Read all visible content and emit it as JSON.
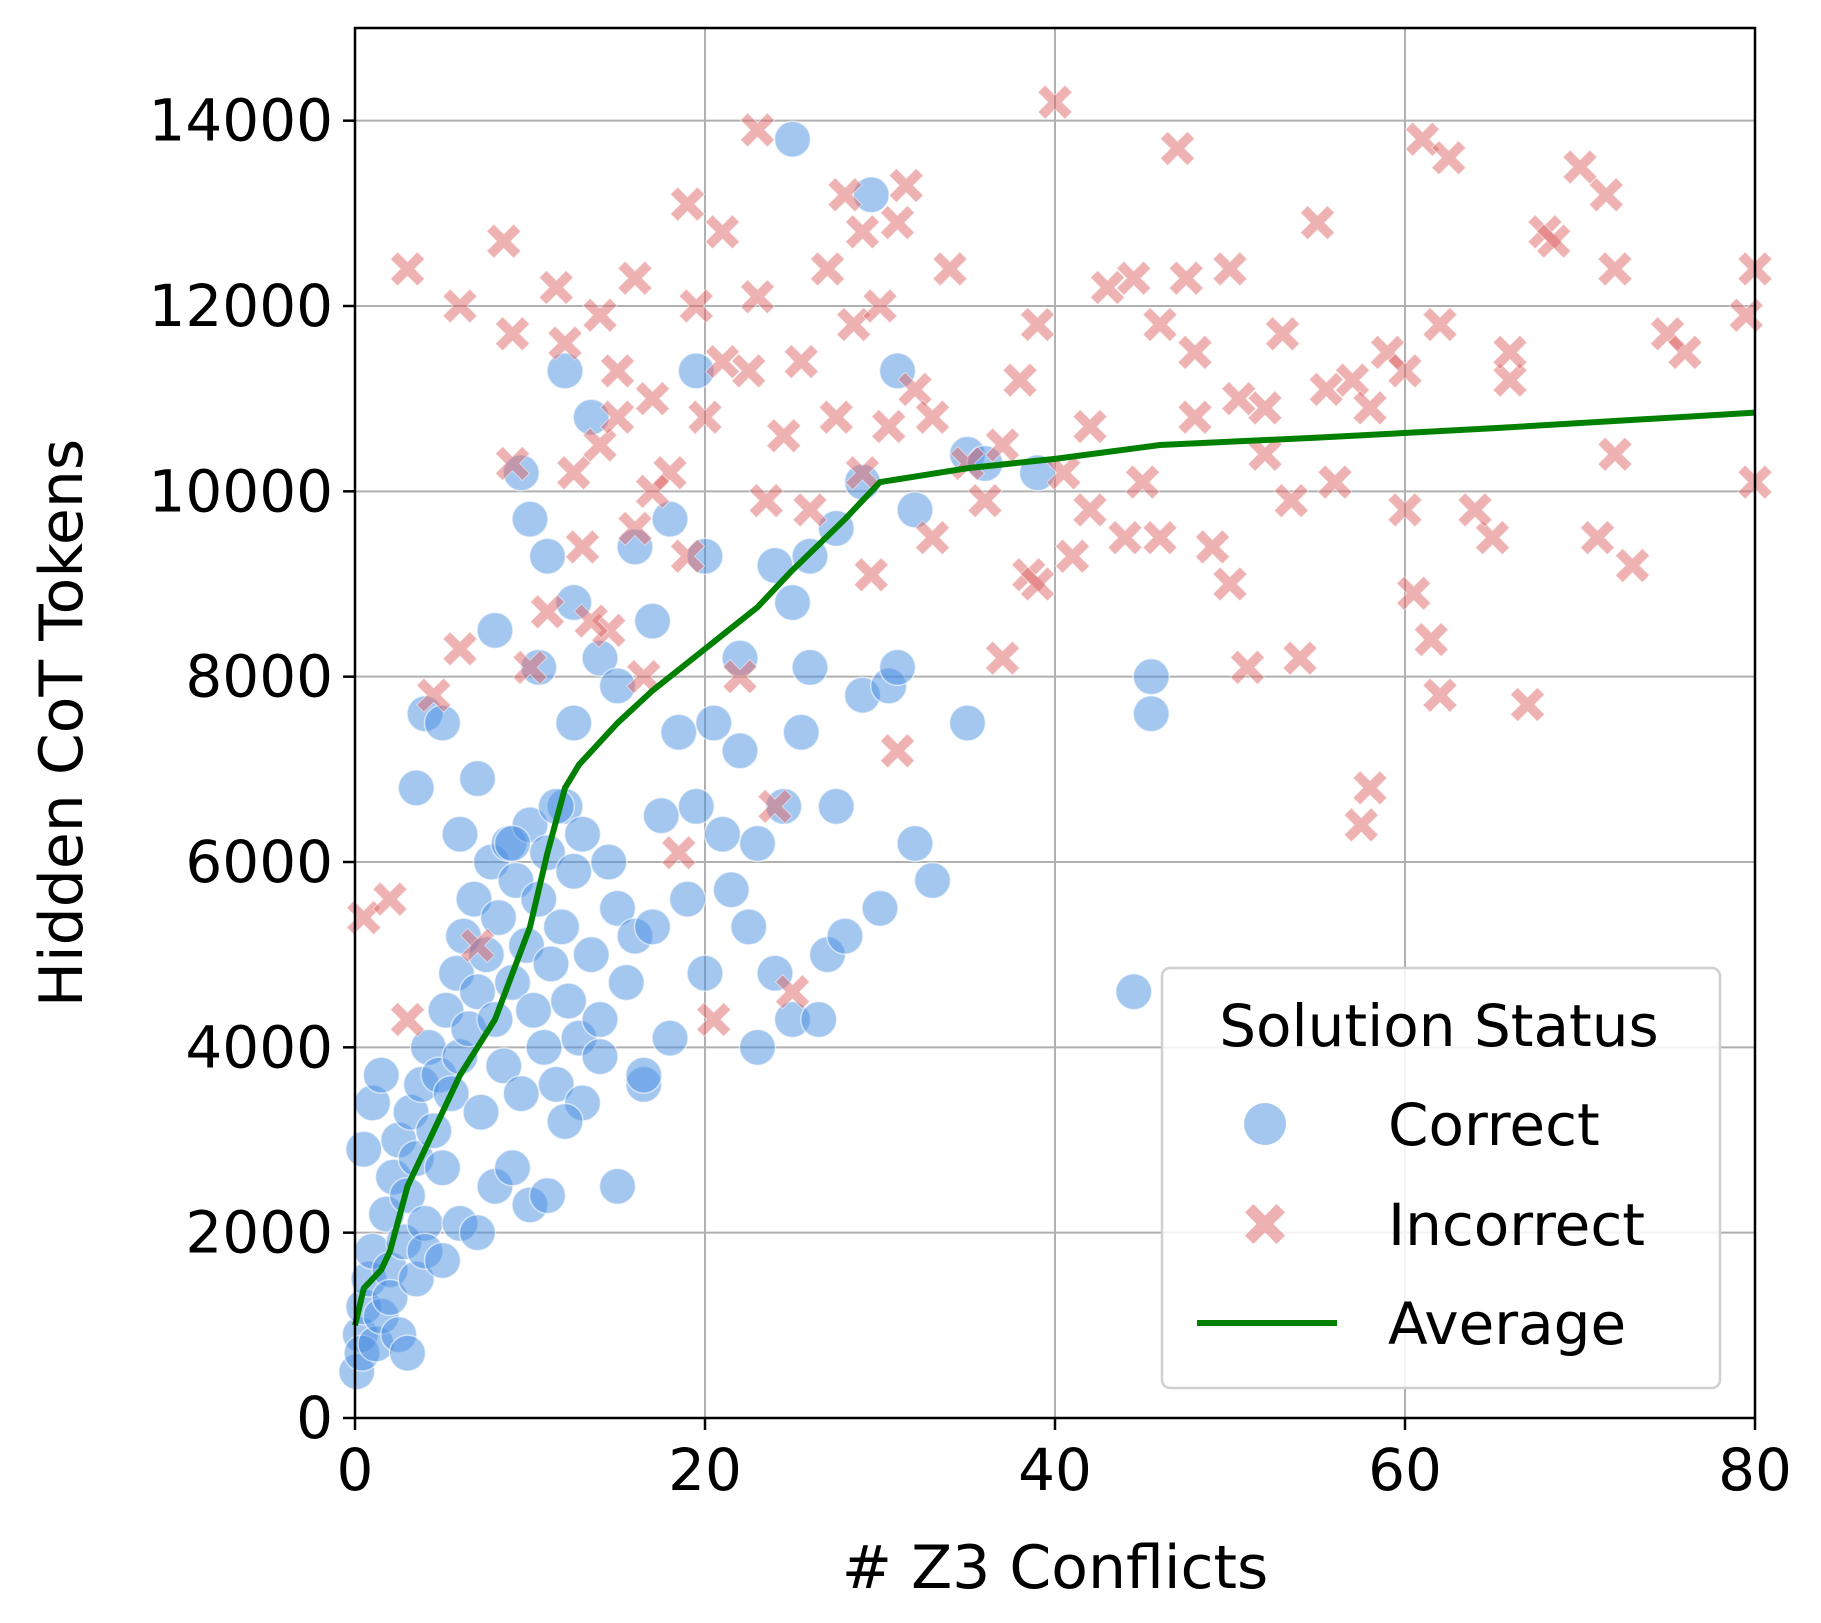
{
  "chart_data": {
    "type": "scatter",
    "title": "",
    "xlabel": "# Z3 Conflicts",
    "ylabel": "Hidden CoT Tokens",
    "xlim": [
      0,
      80
    ],
    "ylim": [
      0,
      15000
    ],
    "x_ticks": [
      0,
      20,
      40,
      60,
      80
    ],
    "y_ticks": [
      0,
      2000,
      4000,
      6000,
      8000,
      10000,
      12000,
      14000
    ],
    "grid": true,
    "legend": {
      "title": "Solution Status",
      "placement": "lower-right",
      "entries": [
        "Correct",
        "Incorrect",
        "Average"
      ]
    },
    "colors": {
      "correct": "#4a90e2",
      "incorrect": "#e06666",
      "average": "#008000"
    },
    "series": [
      {
        "name": "Correct",
        "marker": "circle",
        "points": [
          [
            0.1,
            500
          ],
          [
            0.3,
            900
          ],
          [
            0.5,
            1200
          ],
          [
            0.4,
            700
          ],
          [
            0.8,
            1500
          ],
          [
            1.0,
            1800
          ],
          [
            1.2,
            800
          ],
          [
            1.5,
            1100
          ],
          [
            1.8,
            2200
          ],
          [
            2.0,
            1600
          ],
          [
            2.2,
            2600
          ],
          [
            2.5,
            3000
          ],
          [
            2.8,
            1900
          ],
          [
            3.0,
            2400
          ],
          [
            3.2,
            3300
          ],
          [
            3.5,
            2800
          ],
          [
            3.8,
            3600
          ],
          [
            4.0,
            2100
          ],
          [
            4.2,
            4000
          ],
          [
            4.5,
            3100
          ],
          [
            4.8,
            3700
          ],
          [
            5.0,
            2700
          ],
          [
            5.2,
            4400
          ],
          [
            5.5,
            3500
          ],
          [
            5.8,
            4800
          ],
          [
            6.0,
            3900
          ],
          [
            6.2,
            5200
          ],
          [
            6.5,
            4200
          ],
          [
            6.8,
            5600
          ],
          [
            7.0,
            4600
          ],
          [
            7.2,
            3300
          ],
          [
            7.5,
            5000
          ],
          [
            7.8,
            6000
          ],
          [
            8.0,
            4300
          ],
          [
            8.2,
            5400
          ],
          [
            8.5,
            3800
          ],
          [
            8.8,
            6200
          ],
          [
            9.0,
            4700
          ],
          [
            9.2,
            5800
          ],
          [
            9.5,
            3500
          ],
          [
            9.8,
            5100
          ],
          [
            10.0,
            6400
          ],
          [
            10.2,
            4400
          ],
          [
            10.5,
            5600
          ],
          [
            10.8,
            4000
          ],
          [
            11.0,
            6100
          ],
          [
            11.2,
            4900
          ],
          [
            11.5,
            3600
          ],
          [
            11.8,
            5300
          ],
          [
            12.0,
            6600
          ],
          [
            12.2,
            4500
          ],
          [
            12.5,
            5900
          ],
          [
            12.8,
            4100
          ],
          [
            13.0,
            6300
          ],
          [
            13.5,
            5000
          ],
          [
            14.0,
            4300
          ],
          [
            14.5,
            6000
          ],
          [
            15.0,
            5500
          ],
          [
            15.5,
            4700
          ],
          [
            16.0,
            5200
          ],
          [
            16.5,
            3600
          ],
          [
            17.0,
            5300
          ],
          [
            17.5,
            6500
          ],
          [
            18.0,
            4100
          ],
          [
            18.5,
            7400
          ],
          [
            19.0,
            5600
          ],
          [
            19.5,
            6600
          ],
          [
            20.0,
            4800
          ],
          [
            20.5,
            7500
          ],
          [
            21.0,
            6300
          ],
          [
            21.5,
            5700
          ],
          [
            22.0,
            7200
          ],
          [
            22.5,
            5300
          ],
          [
            23.0,
            6200
          ],
          [
            23.0,
            4000
          ],
          [
            24.0,
            4800
          ],
          [
            24.5,
            6600
          ],
          [
            25.0,
            4300
          ],
          [
            25.5,
            7400
          ],
          [
            26.0,
            8100
          ],
          [
            26.5,
            4300
          ],
          [
            27.0,
            5000
          ],
          [
            27.5,
            6600
          ],
          [
            28.0,
            5200
          ],
          [
            29.0,
            7800
          ],
          [
            30.0,
            5500
          ],
          [
            30.5,
            7900
          ],
          [
            31.0,
            8100
          ],
          [
            32.0,
            6200
          ],
          [
            33.0,
            5800
          ],
          [
            35.0,
            7500
          ],
          [
            44.5,
            4600
          ],
          [
            45.5,
            7600
          ],
          [
            45.5,
            8000
          ],
          [
            25.0,
            13800
          ],
          [
            29.5,
            13200
          ],
          [
            12.0,
            11300
          ],
          [
            13.5,
            10800
          ],
          [
            9.5,
            10200
          ],
          [
            10.0,
            9700
          ],
          [
            11.0,
            9300
          ],
          [
            12.5,
            8800
          ],
          [
            14.0,
            8200
          ],
          [
            15.0,
            7900
          ],
          [
            16.0,
            9400
          ],
          [
            17.0,
            8600
          ],
          [
            18.0,
            9700
          ],
          [
            19.5,
            11300
          ],
          [
            20.0,
            9300
          ],
          [
            22.0,
            8200
          ],
          [
            24.0,
            9200
          ],
          [
            25.0,
            8800
          ],
          [
            26.0,
            9300
          ],
          [
            27.5,
            9600
          ],
          [
            29.0,
            10100
          ],
          [
            31.0,
            11300
          ],
          [
            32.0,
            9800
          ],
          [
            35.0,
            10400
          ],
          [
            36.0,
            10300
          ],
          [
            39.0,
            10200
          ],
          [
            4.0,
            7600
          ],
          [
            5.0,
            7500
          ],
          [
            3.5,
            6800
          ],
          [
            7.0,
            6900
          ],
          [
            8.0,
            8500
          ],
          [
            6.0,
            6300
          ],
          [
            9.0,
            6200
          ],
          [
            10.5,
            8100
          ],
          [
            11.5,
            6600
          ],
          [
            12.5,
            7500
          ],
          [
            0.5,
            2900
          ],
          [
            1.0,
            3400
          ],
          [
            1.5,
            3700
          ],
          [
            2.0,
            1300
          ],
          [
            2.5,
            900
          ],
          [
            3.0,
            700
          ],
          [
            3.5,
            1500
          ],
          [
            4.0,
            1800
          ],
          [
            5.0,
            1700
          ],
          [
            6.0,
            2100
          ],
          [
            7.0,
            2000
          ],
          [
            8.0,
            2500
          ],
          [
            9.0,
            2700
          ],
          [
            10.0,
            2300
          ],
          [
            11.0,
            2400
          ],
          [
            13.0,
            3400
          ],
          [
            15.0,
            2500
          ],
          [
            16.5,
            3700
          ],
          [
            14.0,
            3900
          ],
          [
            12.0,
            3200
          ]
        ]
      },
      {
        "name": "Incorrect",
        "marker": "x",
        "points": [
          [
            0.5,
            5400
          ],
          [
            2.0,
            5600
          ],
          [
            3.0,
            4300
          ],
          [
            4.5,
            7800
          ],
          [
            6.0,
            8300
          ],
          [
            7.0,
            5100
          ],
          [
            9.0,
            10300
          ],
          [
            10.0,
            8100
          ],
          [
            11.0,
            8700
          ],
          [
            12.0,
            11600
          ],
          [
            12.5,
            10200
          ],
          [
            13.0,
            9400
          ],
          [
            14.0,
            10500
          ],
          [
            14.5,
            8500
          ],
          [
            15.0,
            11300
          ],
          [
            16.0,
            9600
          ],
          [
            16.5,
            8000
          ],
          [
            17.0,
            11000
          ],
          [
            18.0,
            10200
          ],
          [
            18.5,
            6100
          ],
          [
            19.0,
            9300
          ],
          [
            19.5,
            12000
          ],
          [
            20.0,
            10800
          ],
          [
            20.5,
            4300
          ],
          [
            21.0,
            11400
          ],
          [
            22.0,
            8000
          ],
          [
            22.5,
            11300
          ],
          [
            23.0,
            12100
          ],
          [
            23.5,
            9900
          ],
          [
            24.0,
            6600
          ],
          [
            24.5,
            10600
          ],
          [
            25.0,
            4600
          ],
          [
            25.5,
            11400
          ],
          [
            26.0,
            9800
          ],
          [
            27.0,
            12400
          ],
          [
            27.5,
            10800
          ],
          [
            28.0,
            13200
          ],
          [
            28.5,
            11800
          ],
          [
            29.0,
            10200
          ],
          [
            29.5,
            9100
          ],
          [
            30.0,
            12000
          ],
          [
            30.5,
            10700
          ],
          [
            31.0,
            7200
          ],
          [
            31.5,
            13300
          ],
          [
            32.0,
            11100
          ],
          [
            33.0,
            9500
          ],
          [
            34.0,
            12400
          ],
          [
            35.0,
            10300
          ],
          [
            36.0,
            9900
          ],
          [
            37.0,
            8200
          ],
          [
            38.0,
            11200
          ],
          [
            38.5,
            9100
          ],
          [
            39.0,
            11800
          ],
          [
            40.0,
            14200
          ],
          [
            40.5,
            10200
          ],
          [
            41.0,
            9300
          ],
          [
            42.0,
            10700
          ],
          [
            43.0,
            12200
          ],
          [
            44.0,
            9500
          ],
          [
            44.5,
            12300
          ],
          [
            45.0,
            10100
          ],
          [
            46.0,
            11800
          ],
          [
            47.0,
            13700
          ],
          [
            47.5,
            12300
          ],
          [
            48.0,
            10800
          ],
          [
            49.0,
            9400
          ],
          [
            50.0,
            12400
          ],
          [
            50.5,
            11000
          ],
          [
            51.0,
            8100
          ],
          [
            52.0,
            10900
          ],
          [
            53.0,
            11700
          ],
          [
            53.5,
            9900
          ],
          [
            54.0,
            8200
          ],
          [
            55.0,
            12900
          ],
          [
            56.0,
            10100
          ],
          [
            57.0,
            11200
          ],
          [
            57.5,
            6400
          ],
          [
            58.0,
            6800
          ],
          [
            59.0,
            11500
          ],
          [
            60.0,
            9800
          ],
          [
            60.5,
            8900
          ],
          [
            61.0,
            13800
          ],
          [
            61.5,
            8400
          ],
          [
            62.0,
            11800
          ],
          [
            62.0,
            7800
          ],
          [
            62.5,
            13600
          ],
          [
            65.0,
            9500
          ],
          [
            66.0,
            11200
          ],
          [
            67.0,
            7700
          ],
          [
            68.0,
            12800
          ],
          [
            70.0,
            13500
          ],
          [
            71.0,
            9500
          ],
          [
            72.0,
            12400
          ],
          [
            73.0,
            9200
          ],
          [
            75.0,
            11700
          ],
          [
            76.0,
            11500
          ],
          [
            79.5,
            11900
          ],
          [
            80.0,
            12400
          ],
          [
            80.0,
            10100
          ],
          [
            3.0,
            12400
          ],
          [
            6.0,
            12000
          ],
          [
            8.5,
            12700
          ],
          [
            9.0,
            11700
          ],
          [
            11.5,
            12200
          ],
          [
            14.0,
            11900
          ],
          [
            16.0,
            12300
          ],
          [
            19.0,
            13100
          ],
          [
            21.0,
            12800
          ],
          [
            23.0,
            13900
          ],
          [
            29.0,
            12800
          ],
          [
            31.0,
            12900
          ],
          [
            33.0,
            10800
          ],
          [
            37.0,
            10500
          ],
          [
            39.0,
            9000
          ],
          [
            42.0,
            9800
          ],
          [
            46.0,
            9500
          ],
          [
            48.0,
            11500
          ],
          [
            50.0,
            9000
          ],
          [
            52.0,
            10400
          ],
          [
            55.5,
            11100
          ],
          [
            58.0,
            10900
          ],
          [
            60.0,
            11300
          ],
          [
            64.0,
            9800
          ],
          [
            66.0,
            11500
          ],
          [
            68.5,
            12700
          ],
          [
            71.5,
            13200
          ],
          [
            72.0,
            10400
          ],
          [
            17.0,
            10000
          ],
          [
            15.0,
            10800
          ],
          [
            13.5,
            8600
          ]
        ]
      },
      {
        "name": "Average",
        "marker": "line",
        "points": [
          [
            0,
            1000
          ],
          [
            0.5,
            1400
          ],
          [
            1.5,
            1600
          ],
          [
            2,
            1800
          ],
          [
            3,
            2500
          ],
          [
            4,
            2900
          ],
          [
            5,
            3300
          ],
          [
            6,
            3700
          ],
          [
            7,
            4000
          ],
          [
            8,
            4300
          ],
          [
            9,
            4800
          ],
          [
            10,
            5300
          ],
          [
            11,
            6100
          ],
          [
            12,
            6800
          ],
          [
            12.8,
            7050
          ],
          [
            15,
            7500
          ],
          [
            17,
            7850
          ],
          [
            19,
            8150
          ],
          [
            21,
            8450
          ],
          [
            23,
            8750
          ],
          [
            25,
            9150
          ],
          [
            28,
            9700
          ],
          [
            30,
            10100
          ],
          [
            35,
            10250
          ],
          [
            40,
            10350
          ],
          [
            46,
            10500
          ],
          [
            55,
            10580
          ],
          [
            65,
            10680
          ],
          [
            80,
            10850
          ]
        ]
      }
    ]
  }
}
